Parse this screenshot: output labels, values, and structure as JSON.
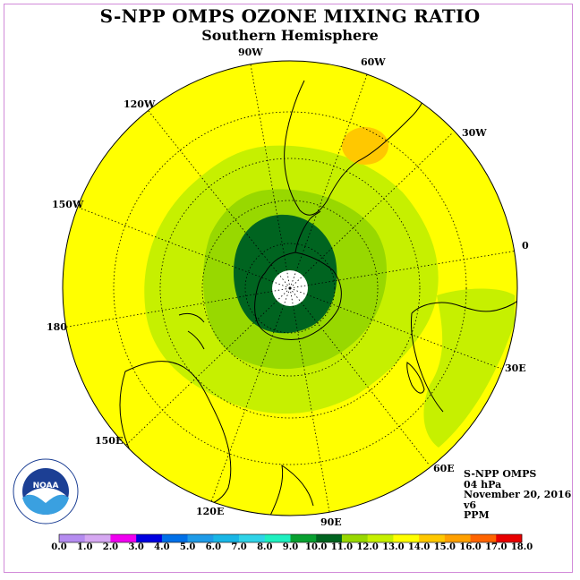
{
  "title": "S-NPP OMPS OZONE MIXING RATIO",
  "subtitle": "Southern Hemisphere",
  "longitude_labels": [
    "90W",
    "60W",
    "30W",
    "0",
    "30E",
    "60E",
    "90E",
    "120E",
    "150E",
    "180",
    "150W",
    "120W"
  ],
  "info": {
    "instrument": "S-NPP OMPS",
    "level": "04 hPa",
    "date": "November 20, 2016",
    "version": "v6",
    "units": "PPM"
  },
  "logo_text": "NOAA",
  "logo_ring_text": "NATIONAL OCEANIC AND ATMOSPHERIC ADMINISTRATION · U.S. DEPARTMENT OF COMMERCE",
  "colorbar": {
    "ticks": [
      "0.0",
      "1.0",
      "2.0",
      "3.0",
      "4.0",
      "5.0",
      "6.0",
      "7.0",
      "8.0",
      "9.0",
      "10.0",
      "11.0",
      "12.0",
      "13.0",
      "14.0",
      "15.0",
      "16.0",
      "17.0",
      "18.0"
    ],
    "colors": [
      "#b58cf0",
      "#d6a8f2",
      "#f000f0",
      "#0000e0",
      "#0070e8",
      "#1e9be8",
      "#19b6e6",
      "#2fd3e8",
      "#1ef0c0",
      "#08a030",
      "#006420",
      "#98d800",
      "#c6f000",
      "#ffff00",
      "#ffc800",
      "#ffa000",
      "#ff6400",
      "#e80000",
      "#8b5a3c"
    ]
  },
  "field_colors": {
    "outer": "#ffff00",
    "ring_11_12": "#c6f000",
    "ring_10_11": "#98d800",
    "core_9_10": "#006420",
    "high_13_14": "#ffc800",
    "missing": "#ffffff"
  }
}
